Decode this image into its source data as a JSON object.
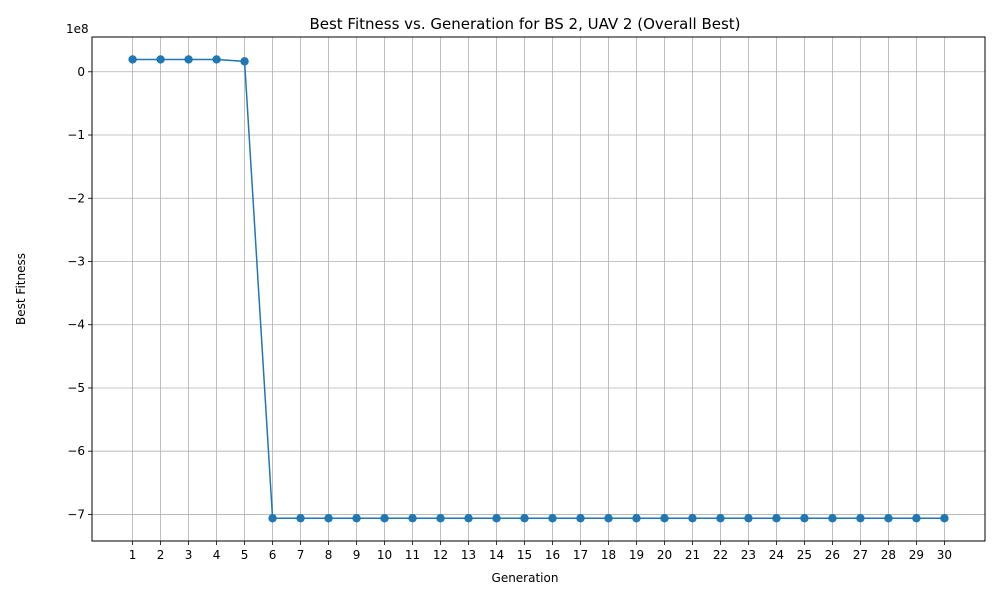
{
  "chart_data": {
    "type": "line",
    "title": "Best Fitness vs. Generation for BS 2, UAV 2 (Overall Best)",
    "xlabel": "Generation",
    "ylabel": "Best Fitness",
    "offset_label": "1e8",
    "x": [
      1,
      2,
      3,
      4,
      5,
      6,
      7,
      8,
      9,
      10,
      11,
      12,
      13,
      14,
      15,
      16,
      17,
      18,
      19,
      20,
      21,
      22,
      23,
      24,
      25,
      26,
      27,
      28,
      29,
      30
    ],
    "series": [
      {
        "values": [
          19500000,
          19500000,
          19500000,
          19500000,
          16500000,
          -706000000,
          -706000000,
          -706000000,
          -706000000,
          -706000000,
          -706000000,
          -706000000,
          -706000000,
          -706000000,
          -706000000,
          -706000000,
          -706000000,
          -706000000,
          -706000000,
          -706000000,
          -706000000,
          -706000000,
          -706000000,
          -706000000,
          -706000000,
          -706000000,
          -706000000,
          -706000000,
          -706000000,
          -706000000
        ],
        "color": "#1f77b4",
        "marker": "circle"
      }
    ],
    "xticks": [
      "1",
      "2",
      "3",
      "4",
      "5",
      "6",
      "7",
      "8",
      "9",
      "10",
      "11",
      "12",
      "13",
      "14",
      "15",
      "16",
      "17",
      "18",
      "19",
      "20",
      "21",
      "22",
      "23",
      "24",
      "25",
      "26",
      "27",
      "28",
      "29",
      "30"
    ],
    "yticks": [
      0,
      -1,
      -2,
      -3,
      -4,
      -5,
      -6,
      -7
    ],
    "ytick_labels": [
      "0",
      "−1",
      "−2",
      "−3",
      "−4",
      "−5",
      "−6",
      "−7"
    ],
    "xlim": [
      -0.45,
      31.45
    ],
    "ylim": [
      -7.42,
      0.55
    ],
    "y_scale_factor": 100000000,
    "grid": true,
    "grid_color": "#b0b0b0"
  }
}
